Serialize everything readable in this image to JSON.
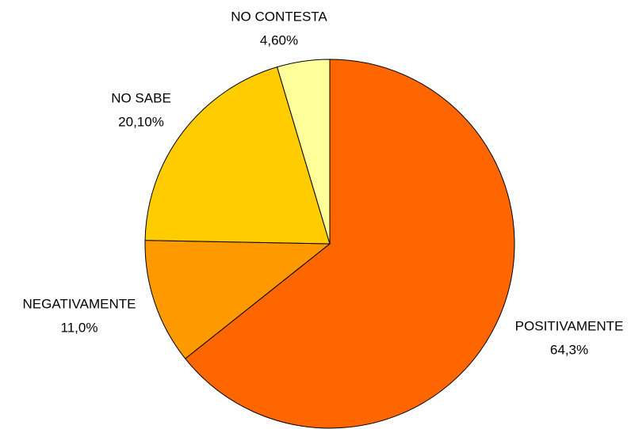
{
  "chart_data": {
    "type": "pie",
    "categories": [
      "POSITIVAMENTE",
      "NEGATIVAMENTE",
      "NO SABE",
      "NO CONTESTA"
    ],
    "values": [
      64.3,
      11.0,
      20.1,
      4.6
    ],
    "value_labels": [
      "64,3%",
      "11,0%",
      "20,10%",
      "4,60%"
    ],
    "colors": [
      "#FF6600",
      "#FF9900",
      "#FFCC00",
      "#FFFF99"
    ]
  }
}
